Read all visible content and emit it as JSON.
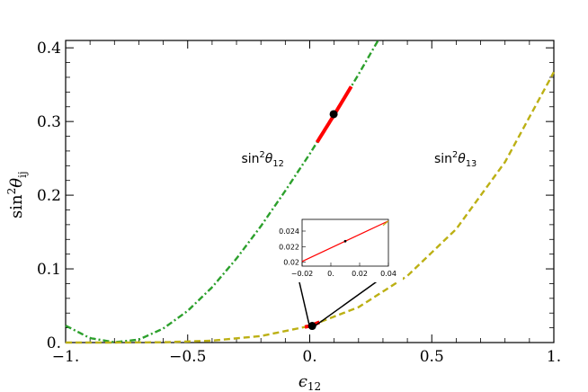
{
  "chart_data": {
    "type": "line",
    "title": "",
    "xlabel": "ϵ",
    "xlabel_sub": "12",
    "ylabel": "sin",
    "ylabel_sup": "2",
    "ylabel_greek": "θ",
    "ylabel_sub": "ij",
    "xlim": [
      -1.0,
      1.0
    ],
    "ylim": [
      0.0,
      0.41
    ],
    "grid": false,
    "x_ticks": [
      {
        "value": -1.0,
        "label": "−1."
      },
      {
        "value": -0.5,
        "label": "−0.5"
      },
      {
        "value": 0.0,
        "label": "0."
      },
      {
        "value": 0.5,
        "label": "0.5"
      },
      {
        "value": 1.0,
        "label": "1."
      }
    ],
    "y_ticks": [
      {
        "value": 0.0,
        "label": "0."
      },
      {
        "value": 0.1,
        "label": "0.1"
      },
      {
        "value": 0.2,
        "label": "0.2"
      },
      {
        "value": 0.3,
        "label": "0.3"
      },
      {
        "value": 0.4,
        "label": "0.4"
      }
    ],
    "series": [
      {
        "color": "#2ca02c",
        "style": "dash-dot",
        "x": [
          -1.0,
          -0.9,
          -0.8,
          -0.7,
          -0.6,
          -0.5,
          -0.4,
          -0.3,
          -0.2,
          -0.1,
          0.0,
          0.1,
          0.2,
          0.28
        ],
        "y": [
          0.023,
          0.006,
          0.0005,
          0.004,
          0.019,
          0.043,
          0.075,
          0.114,
          0.158,
          0.206,
          0.256,
          0.309,
          0.364,
          0.41
        ],
        "highlight": {
          "color": "#ff0000",
          "x_from": 0.03,
          "x_to": 0.17
        },
        "point": {
          "x": 0.098,
          "y": 0.31
        }
      },
      {
        "color": "#bcb014",
        "style": "dashed",
        "x": [
          -1.0,
          -0.8,
          -0.6,
          -0.4,
          -0.2,
          0.0,
          0.2,
          0.4,
          0.6,
          0.8,
          1.0
        ],
        "y": [
          0.0,
          0.0,
          0.0004,
          0.0026,
          0.0088,
          0.0225,
          0.048,
          0.0905,
          0.154,
          0.245,
          0.367
        ],
        "highlight": {
          "color": "#ff0000",
          "x_from": -0.02,
          "x_to": 0.04
        },
        "point": {
          "x": 0.01,
          "y": 0.0225
        }
      }
    ],
    "annotations": [
      {
        "text": "sin",
        "sup": "2",
        "greek": "θ",
        "sub": "12",
        "x": -0.28,
        "y": 0.244
      },
      {
        "text": "sin",
        "sup": "2",
        "greek": "θ",
        "sub": "13",
        "x": 0.51,
        "y": 0.244
      }
    ],
    "inset": {
      "xlim": [
        -0.02,
        0.04
      ],
      "ylim": [
        0.0195,
        0.0255
      ],
      "x_ticks": [
        {
          "value": -0.02,
          "label": "−0.02"
        },
        {
          "value": 0.0,
          "label": "0."
        },
        {
          "value": 0.02,
          "label": "0.02"
        },
        {
          "value": 0.04,
          "label": "0.04"
        }
      ],
      "y_ticks": [
        {
          "value": 0.02,
          "label": "0.02"
        },
        {
          "value": 0.022,
          "label": "0.022"
        },
        {
          "value": 0.024,
          "label": "0.024"
        }
      ],
      "line": {
        "color": "#ff0000",
        "x": [
          -0.02,
          0.04
        ],
        "y": [
          0.0201,
          0.0253
        ],
        "ends_color": "#bcb014"
      },
      "point": {
        "x": 0.01,
        "y": 0.0227
      }
    }
  }
}
